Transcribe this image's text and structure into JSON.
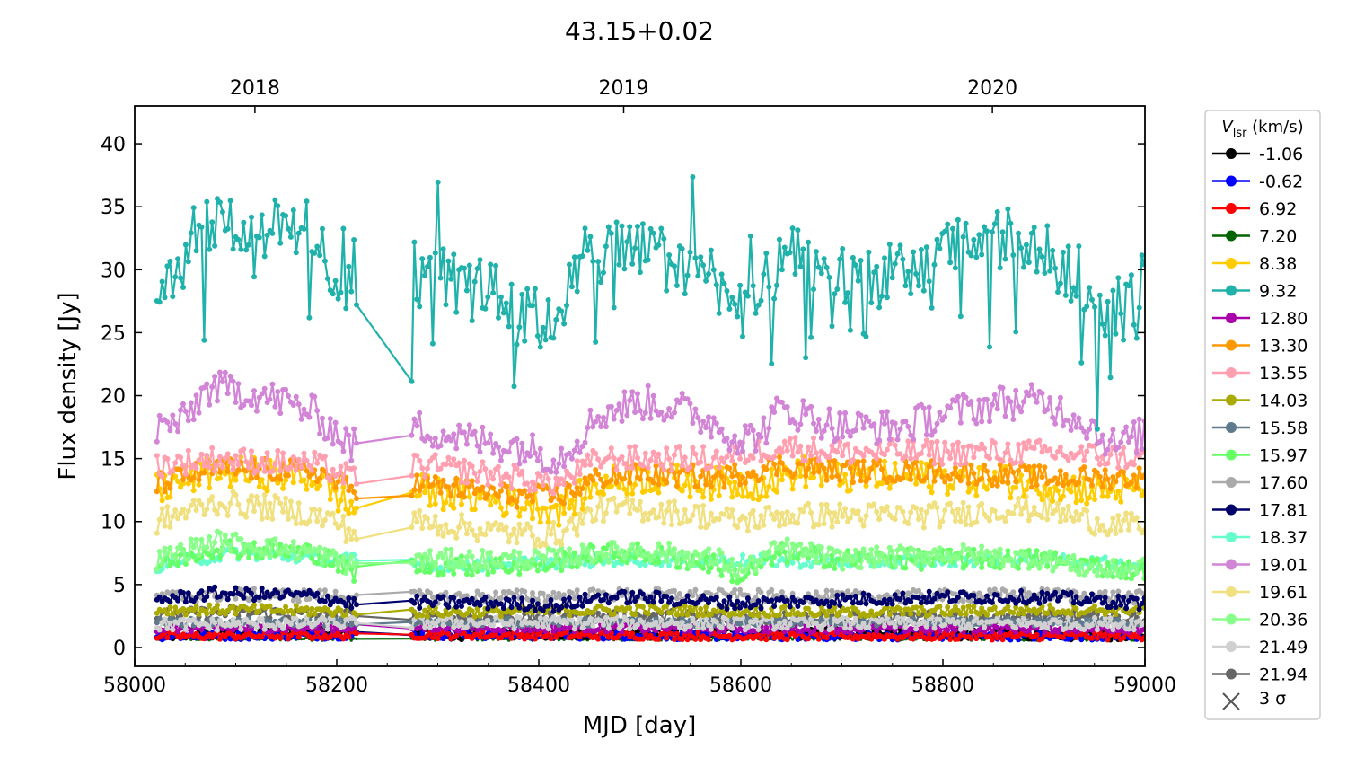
{
  "chart_data": {
    "type": "line",
    "title": "43.15+0.02",
    "xlabel": "MJD [day]",
    "ylabel": "Flux density [Jy]",
    "xlim": [
      58000,
      59000
    ],
    "ylim": [
      -1.5,
      43
    ],
    "x_ticks": [
      58000,
      58200,
      58400,
      58600,
      58800,
      59000
    ],
    "y_ticks": [
      0,
      5,
      10,
      15,
      20,
      25,
      30,
      35,
      40
    ],
    "top_axis": {
      "labels": [
        "2018",
        "2019",
        "2020"
      ],
      "mjd": [
        58119,
        58484,
        58849
      ]
    },
    "legend": {
      "title_symbol": "V",
      "title_subscript": "lsr",
      "title_unit": " (km/s)",
      "position": "right-outside",
      "upper_limit_label": "3 σ"
    },
    "gap": [
      58222,
      58272
    ],
    "series": [
      {
        "name": "-1.06",
        "color": "#000000",
        "keyframes": [
          [
            58022,
            1.0
          ],
          [
            58100,
            1.2
          ],
          [
            58200,
            1.3
          ],
          [
            58300,
            1.0
          ],
          [
            58500,
            1.2
          ],
          [
            58700,
            1.1
          ],
          [
            58900,
            1.0
          ],
          [
            59000,
            1.0
          ]
        ],
        "noise": 0.4
      },
      {
        "name": "-0.62",
        "color": "#0000ff",
        "keyframes": [
          [
            58022,
            0.9
          ],
          [
            58300,
            1.0
          ],
          [
            58600,
            0.9
          ],
          [
            59000,
            0.9
          ]
        ],
        "noise": 0.3
      },
      {
        "name": "6.92",
        "color": "#ff0000",
        "keyframes": [
          [
            58022,
            0.9
          ],
          [
            58300,
            1.0
          ],
          [
            58600,
            0.9
          ],
          [
            59000,
            0.9
          ]
        ],
        "noise": 0.3
      },
      {
        "name": "7.20",
        "color": "#006400",
        "keyframes": [
          [
            58022,
            0.7
          ],
          [
            58300,
            0.7
          ],
          [
            58600,
            0.7
          ],
          [
            59000,
            0.7
          ]
        ],
        "noise": 0.15
      },
      {
        "name": "8.38",
        "color": "#ffcc00",
        "keyframes": [
          [
            58022,
            12.5
          ],
          [
            58080,
            14
          ],
          [
            58180,
            13.5
          ],
          [
            58215,
            11
          ],
          [
            58280,
            12.5
          ],
          [
            58330,
            12
          ],
          [
            58380,
            11.5
          ],
          [
            58420,
            11
          ],
          [
            58460,
            13
          ],
          [
            58500,
            13.5
          ],
          [
            58580,
            13
          ],
          [
            58620,
            13
          ],
          [
            58660,
            14
          ],
          [
            58700,
            13.5
          ],
          [
            58800,
            13.5
          ],
          [
            58900,
            13
          ],
          [
            58950,
            12.5
          ],
          [
            59000,
            12.5
          ]
        ],
        "noise": 1.3
      },
      {
        "name": "9.32",
        "color": "#20b2aa",
        "keyframes": [
          [
            58022,
            29
          ],
          [
            58045,
            30
          ],
          [
            58060,
            34
          ],
          [
            58100,
            33.5
          ],
          [
            58150,
            33
          ],
          [
            58180,
            33.5
          ],
          [
            58200,
            28
          ],
          [
            58222,
            27.5
          ],
          [
            58272,
            26
          ],
          [
            58290,
            30
          ],
          [
            58330,
            28.5
          ],
          [
            58360,
            28
          ],
          [
            58380,
            26
          ],
          [
            58400,
            26
          ],
          [
            58420,
            26.5
          ],
          [
            58440,
            31
          ],
          [
            58480,
            31.5
          ],
          [
            58520,
            31
          ],
          [
            58560,
            30
          ],
          [
            58580,
            29
          ],
          [
            58600,
            27
          ],
          [
            58620,
            28
          ],
          [
            58640,
            31
          ],
          [
            58660,
            30.5
          ],
          [
            58700,
            29.5
          ],
          [
            58750,
            29.5
          ],
          [
            58780,
            30
          ],
          [
            58820,
            32
          ],
          [
            58860,
            32.5
          ],
          [
            58900,
            31
          ],
          [
            58930,
            30
          ],
          [
            58960,
            27
          ],
          [
            58980,
            27
          ],
          [
            59000,
            29
          ]
        ],
        "noise": 2.6
      },
      {
        "name": "12.80",
        "color": "#aa00aa",
        "keyframes": [
          [
            58022,
            1.5
          ],
          [
            58300,
            1.6
          ],
          [
            58600,
            1.5
          ],
          [
            59000,
            1.5
          ]
        ],
        "noise": 0.3
      },
      {
        "name": "13.30",
        "color": "#ff9900",
        "keyframes": [
          [
            58022,
            13
          ],
          [
            58080,
            14.2
          ],
          [
            58180,
            14
          ],
          [
            58215,
            12.5
          ],
          [
            58280,
            13
          ],
          [
            58330,
            12.5
          ],
          [
            58380,
            12
          ],
          [
            58420,
            12
          ],
          [
            58460,
            13.5
          ],
          [
            58500,
            13.8
          ],
          [
            58580,
            13.5
          ],
          [
            58640,
            14.5
          ],
          [
            58700,
            14
          ],
          [
            58800,
            14
          ],
          [
            58900,
            13.5
          ],
          [
            59000,
            13.5
          ]
        ],
        "noise": 0.9
      },
      {
        "name": "13.55",
        "color": "#ff9fb0",
        "keyframes": [
          [
            58022,
            14.5
          ],
          [
            58080,
            15
          ],
          [
            58180,
            14.5
          ],
          [
            58215,
            13.5
          ],
          [
            58280,
            14.5
          ],
          [
            58330,
            14
          ],
          [
            58380,
            13.5
          ],
          [
            58420,
            13
          ],
          [
            58460,
            15
          ],
          [
            58500,
            15
          ],
          [
            58580,
            15
          ],
          [
            58640,
            16
          ],
          [
            58700,
            15.5
          ],
          [
            58800,
            15.5
          ],
          [
            58900,
            15.5
          ],
          [
            59000,
            15
          ]
        ],
        "noise": 1.0
      },
      {
        "name": "14.03",
        "color": "#aaaa00",
        "keyframes": [
          [
            58022,
            3.0
          ],
          [
            58100,
            3.0
          ],
          [
            58300,
            2.8
          ],
          [
            58500,
            3.0
          ],
          [
            58700,
            2.8
          ],
          [
            58900,
            3.0
          ],
          [
            59000,
            3.0
          ]
        ],
        "noise": 0.4
      },
      {
        "name": "15.58",
        "color": "#5f7a8c",
        "keyframes": [
          [
            58022,
            2.0
          ],
          [
            58300,
            2.0
          ],
          [
            58600,
            2.0
          ],
          [
            59000,
            2.0
          ]
        ],
        "noise": 0.3
      },
      {
        "name": "15.97",
        "color": "#66ff66",
        "keyframes": [
          [
            58022,
            6.5
          ],
          [
            58080,
            8
          ],
          [
            58180,
            7.5
          ],
          [
            58215,
            6
          ],
          [
            58280,
            6.5
          ],
          [
            58400,
            6.5
          ],
          [
            58460,
            7.5
          ],
          [
            58500,
            7.5
          ],
          [
            58580,
            6.5
          ],
          [
            58600,
            5.5
          ],
          [
            58640,
            7.5
          ],
          [
            58700,
            7
          ],
          [
            58800,
            7
          ],
          [
            58900,
            7
          ],
          [
            59000,
            6
          ]
        ],
        "noise": 0.8
      },
      {
        "name": "17.60",
        "color": "#aaaaaa",
        "keyframes": [
          [
            58022,
            4.0
          ],
          [
            58100,
            4.2
          ],
          [
            58300,
            4.0
          ],
          [
            58500,
            4.2
          ],
          [
            58700,
            4.0
          ],
          [
            58900,
            4.2
          ],
          [
            59000,
            4.0
          ]
        ],
        "noise": 0.5
      },
      {
        "name": "17.81",
        "color": "#00006b",
        "keyframes": [
          [
            58022,
            3.8
          ],
          [
            58080,
            4.3
          ],
          [
            58180,
            4.1
          ],
          [
            58215,
            3.5
          ],
          [
            58280,
            3.6
          ],
          [
            58380,
            3.5
          ],
          [
            58420,
            3.3
          ],
          [
            58460,
            4.0
          ],
          [
            58500,
            4.0
          ],
          [
            58600,
            3.5
          ],
          [
            58700,
            3.8
          ],
          [
            58800,
            4.0
          ],
          [
            58900,
            4.0
          ],
          [
            59000,
            3.5
          ]
        ],
        "noise": 0.5
      },
      {
        "name": "18.37",
        "color": "#66ffcc",
        "keyframes": [
          [
            58022,
            6.5
          ],
          [
            58100,
            7.5
          ],
          [
            58200,
            7.0
          ],
          [
            58300,
            6.5
          ],
          [
            58500,
            7.0
          ],
          [
            58700,
            6.8
          ],
          [
            58900,
            7.0
          ],
          [
            59000,
            6.5
          ]
        ],
        "noise": 0.5
      },
      {
        "name": "19.01",
        "color": "#d285d6",
        "keyframes": [
          [
            58022,
            17.5
          ],
          [
            58050,
            18
          ],
          [
            58070,
            20.5
          ],
          [
            58100,
            20.5
          ],
          [
            58150,
            19.5
          ],
          [
            58180,
            18.5
          ],
          [
            58200,
            17
          ],
          [
            58215,
            16
          ],
          [
            58280,
            17.5
          ],
          [
            58330,
            16.5
          ],
          [
            58380,
            16
          ],
          [
            58420,
            15
          ],
          [
            58460,
            18.5
          ],
          [
            58500,
            19.5
          ],
          [
            58540,
            19
          ],
          [
            58580,
            17.5
          ],
          [
            58600,
            16.5
          ],
          [
            58620,
            17
          ],
          [
            58640,
            19
          ],
          [
            58660,
            18.5
          ],
          [
            58700,
            17.5
          ],
          [
            58760,
            17.5
          ],
          [
            58800,
            18.5
          ],
          [
            58860,
            19.5
          ],
          [
            58900,
            19.5
          ],
          [
            58940,
            18
          ],
          [
            58970,
            16
          ],
          [
            59000,
            17
          ]
        ],
        "noise": 1.4
      },
      {
        "name": "19.61",
        "color": "#f0e080",
        "keyframes": [
          [
            58022,
            10
          ],
          [
            58080,
            11.5
          ],
          [
            58150,
            11
          ],
          [
            58200,
            10
          ],
          [
            58215,
            9
          ],
          [
            58280,
            10
          ],
          [
            58330,
            9.5
          ],
          [
            58380,
            9
          ],
          [
            58420,
            9
          ],
          [
            58460,
            11
          ],
          [
            58500,
            11
          ],
          [
            58560,
            10.5
          ],
          [
            58600,
            10
          ],
          [
            58640,
            10.5
          ],
          [
            58700,
            10.5
          ],
          [
            58800,
            10.5
          ],
          [
            58860,
            11
          ],
          [
            58900,
            11
          ],
          [
            58950,
            10
          ],
          [
            59000,
            9.5
          ]
        ],
        "noise": 1.0
      },
      {
        "name": "20.36",
        "color": "#88ff88",
        "keyframes": [
          [
            58022,
            7
          ],
          [
            58080,
            8.5
          ],
          [
            58180,
            7.5
          ],
          [
            58215,
            6.5
          ],
          [
            58280,
            7
          ],
          [
            58400,
            7
          ],
          [
            58460,
            7.5
          ],
          [
            58500,
            7.8
          ],
          [
            58580,
            7
          ],
          [
            58600,
            6
          ],
          [
            58640,
            8
          ],
          [
            58700,
            7
          ],
          [
            58800,
            7.5
          ],
          [
            58900,
            7
          ],
          [
            58960,
            6
          ],
          [
            59000,
            6.5
          ]
        ],
        "noise": 0.8
      },
      {
        "name": "21.49",
        "color": "#d0d0d0",
        "keyframes": [
          [
            58022,
            1.8
          ],
          [
            58300,
            2.0
          ],
          [
            58600,
            1.9
          ],
          [
            59000,
            1.9
          ]
        ],
        "noise": 0.5
      },
      {
        "name": "21.94",
        "color": "#666666",
        "keyframes": [
          [
            58022,
            2.5
          ],
          [
            58100,
            2.8
          ],
          [
            58300,
            2.3
          ],
          [
            58500,
            2.5
          ],
          [
            58700,
            2.3
          ],
          [
            58900,
            2.4
          ],
          [
            59000,
            2.3
          ]
        ],
        "noise": 0.5
      }
    ]
  }
}
